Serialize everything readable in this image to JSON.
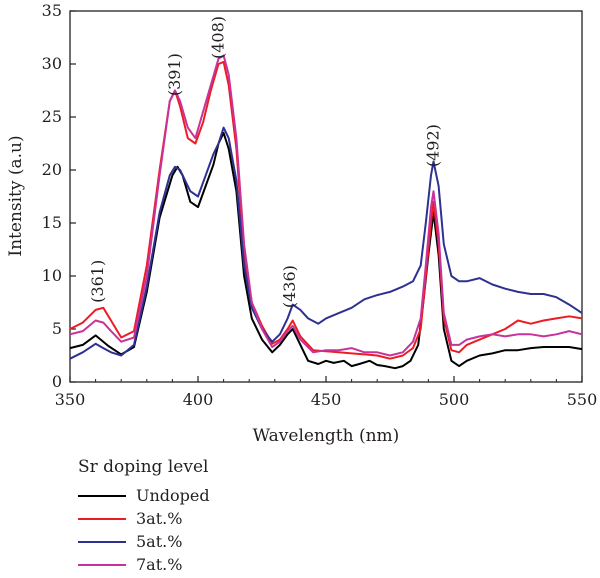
{
  "chart_data": {
    "type": "line",
    "xlabel": "Wavelength (nm)",
    "ylabel": "Intensity (a.u)",
    "xlim": [
      350,
      550
    ],
    "ylim": [
      0,
      35
    ],
    "xticks": [
      350,
      400,
      450,
      500,
      550
    ],
    "yticks": [
      0,
      5,
      10,
      15,
      20,
      25,
      30,
      35
    ],
    "grid": false,
    "legend": {
      "title": "Sr doping level",
      "placement": "below-left"
    },
    "annotations": [
      {
        "text": "(361)",
        "x": 361,
        "y": 9.5
      },
      {
        "text": "(391)",
        "x": 391,
        "y": 29.0
      },
      {
        "text": "(408)",
        "x": 408,
        "y": 32.5
      },
      {
        "text": "(436)",
        "x": 436,
        "y": 9.0
      },
      {
        "text": "(492)",
        "x": 492,
        "y": 22.3
      }
    ],
    "series": [
      {
        "name": "Undoped",
        "color": "#000000",
        "points": [
          [
            350,
            3.2
          ],
          [
            355,
            3.5
          ],
          [
            360,
            4.4
          ],
          [
            365,
            3.4
          ],
          [
            370,
            2.6
          ],
          [
            375,
            3.3
          ],
          [
            380,
            8.5
          ],
          [
            385,
            15.5
          ],
          [
            390,
            19.5
          ],
          [
            392,
            20.3
          ],
          [
            394,
            19.5
          ],
          [
            397,
            17.0
          ],
          [
            400,
            16.5
          ],
          [
            403,
            18.5
          ],
          [
            406,
            20.5
          ],
          [
            408,
            22.5
          ],
          [
            410,
            23.5
          ],
          [
            412,
            22.0
          ],
          [
            415,
            18.0
          ],
          [
            418,
            10.0
          ],
          [
            421,
            6.0
          ],
          [
            425,
            4.0
          ],
          [
            429,
            2.8
          ],
          [
            432,
            3.5
          ],
          [
            435,
            4.5
          ],
          [
            437,
            5.0
          ],
          [
            440,
            3.5
          ],
          [
            443,
            2.0
          ],
          [
            447,
            1.7
          ],
          [
            450,
            2.0
          ],
          [
            453,
            1.8
          ],
          [
            457,
            2.0
          ],
          [
            460,
            1.5
          ],
          [
            463,
            1.7
          ],
          [
            467,
            2.0
          ],
          [
            470,
            1.6
          ],
          [
            473,
            1.5
          ],
          [
            477,
            1.3
          ],
          [
            480,
            1.5
          ],
          [
            483,
            2.0
          ],
          [
            486,
            3.5
          ],
          [
            488,
            7.5
          ],
          [
            490,
            12.0
          ],
          [
            492,
            16.0
          ],
          [
            494,
            12.0
          ],
          [
            496,
            5.0
          ],
          [
            499,
            2.0
          ],
          [
            502,
            1.5
          ],
          [
            505,
            2.0
          ],
          [
            510,
            2.5
          ],
          [
            515,
            2.7
          ],
          [
            520,
            3.0
          ],
          [
            525,
            3.0
          ],
          [
            530,
            3.2
          ],
          [
            535,
            3.3
          ],
          [
            540,
            3.3
          ],
          [
            545,
            3.3
          ],
          [
            550,
            3.1
          ]
        ]
      },
      {
        "name": "3at.%",
        "color": "#ed1c24",
        "points": [
          [
            350,
            5.0
          ],
          [
            355,
            5.6
          ],
          [
            360,
            6.8
          ],
          [
            363,
            7.0
          ],
          [
            366,
            5.8
          ],
          [
            370,
            4.2
          ],
          [
            375,
            4.8
          ],
          [
            380,
            11.0
          ],
          [
            385,
            20.0
          ],
          [
            389,
            26.5
          ],
          [
            391,
            27.5
          ],
          [
            393,
            26.0
          ],
          [
            396,
            23.0
          ],
          [
            399,
            22.5
          ],
          [
            402,
            24.5
          ],
          [
            405,
            27.5
          ],
          [
            408,
            30.0
          ],
          [
            410,
            30.2
          ],
          [
            412,
            28.0
          ],
          [
            415,
            22.0
          ],
          [
            418,
            12.0
          ],
          [
            421,
            7.5
          ],
          [
            425,
            5.3
          ],
          [
            429,
            3.6
          ],
          [
            432,
            4.0
          ],
          [
            435,
            5.0
          ],
          [
            437,
            5.8
          ],
          [
            440,
            4.3
          ],
          [
            445,
            3.0
          ],
          [
            450,
            2.9
          ],
          [
            455,
            2.8
          ],
          [
            460,
            2.7
          ],
          [
            465,
            2.6
          ],
          [
            470,
            2.5
          ],
          [
            475,
            2.2
          ],
          [
            480,
            2.5
          ],
          [
            484,
            3.2
          ],
          [
            487,
            5.0
          ],
          [
            489,
            10.0
          ],
          [
            491,
            15.0
          ],
          [
            492,
            17.0
          ],
          [
            494,
            13.0
          ],
          [
            496,
            6.0
          ],
          [
            499,
            3.0
          ],
          [
            502,
            2.8
          ],
          [
            505,
            3.5
          ],
          [
            510,
            4.0
          ],
          [
            515,
            4.5
          ],
          [
            520,
            5.0
          ],
          [
            525,
            5.8
          ],
          [
            530,
            5.5
          ],
          [
            535,
            5.8
          ],
          [
            540,
            6.0
          ],
          [
            545,
            6.2
          ],
          [
            550,
            6.0
          ]
        ]
      },
      {
        "name": "5at.%",
        "color": "#2e3192",
        "points": [
          [
            350,
            2.2
          ],
          [
            355,
            2.8
          ],
          [
            360,
            3.6
          ],
          [
            363,
            3.2
          ],
          [
            366,
            2.8
          ],
          [
            370,
            2.5
          ],
          [
            375,
            3.5
          ],
          [
            380,
            9.0
          ],
          [
            385,
            16.0
          ],
          [
            389,
            19.5
          ],
          [
            391,
            20.3
          ],
          [
            393,
            20.0
          ],
          [
            397,
            18.0
          ],
          [
            400,
            17.5
          ],
          [
            403,
            19.5
          ],
          [
            406,
            21.5
          ],
          [
            408,
            22.5
          ],
          [
            410,
            24.0
          ],
          [
            412,
            23.0
          ],
          [
            415,
            19.0
          ],
          [
            418,
            11.0
          ],
          [
            421,
            7.0
          ],
          [
            425,
            5.0
          ],
          [
            429,
            3.8
          ],
          [
            432,
            4.5
          ],
          [
            435,
            6.0
          ],
          [
            437,
            7.3
          ],
          [
            440,
            6.8
          ],
          [
            443,
            6.0
          ],
          [
            447,
            5.5
          ],
          [
            450,
            6.0
          ],
          [
            455,
            6.5
          ],
          [
            460,
            7.0
          ],
          [
            465,
            7.8
          ],
          [
            470,
            8.2
          ],
          [
            475,
            8.5
          ],
          [
            480,
            9.0
          ],
          [
            484,
            9.5
          ],
          [
            487,
            11.0
          ],
          [
            489,
            15.0
          ],
          [
            491,
            19.5
          ],
          [
            492,
            20.8
          ],
          [
            494,
            18.5
          ],
          [
            496,
            13.0
          ],
          [
            499,
            10.0
          ],
          [
            502,
            9.5
          ],
          [
            505,
            9.5
          ],
          [
            510,
            9.8
          ],
          [
            515,
            9.2
          ],
          [
            520,
            8.8
          ],
          [
            525,
            8.5
          ],
          [
            530,
            8.3
          ],
          [
            535,
            8.3
          ],
          [
            540,
            8.0
          ],
          [
            545,
            7.3
          ],
          [
            550,
            6.5
          ]
        ]
      },
      {
        "name": "7at.%",
        "color": "#c8339a",
        "points": [
          [
            350,
            4.5
          ],
          [
            355,
            4.8
          ],
          [
            360,
            5.8
          ],
          [
            363,
            5.6
          ],
          [
            366,
            4.8
          ],
          [
            370,
            3.8
          ],
          [
            375,
            4.2
          ],
          [
            380,
            10.0
          ],
          [
            385,
            19.5
          ],
          [
            389,
            26.5
          ],
          [
            391,
            27.5
          ],
          [
            393,
            26.5
          ],
          [
            396,
            24.0
          ],
          [
            399,
            23.0
          ],
          [
            402,
            25.5
          ],
          [
            405,
            28.0
          ],
          [
            408,
            30.5
          ],
          [
            410,
            30.8
          ],
          [
            412,
            29.0
          ],
          [
            415,
            23.0
          ],
          [
            418,
            13.0
          ],
          [
            421,
            7.5
          ],
          [
            425,
            5.0
          ],
          [
            429,
            3.3
          ],
          [
            432,
            3.8
          ],
          [
            435,
            4.8
          ],
          [
            437,
            5.3
          ],
          [
            440,
            4.0
          ],
          [
            445,
            2.8
          ],
          [
            450,
            3.0
          ],
          [
            455,
            3.0
          ],
          [
            460,
            3.2
          ],
          [
            465,
            2.8
          ],
          [
            470,
            2.8
          ],
          [
            475,
            2.5
          ],
          [
            480,
            2.8
          ],
          [
            484,
            3.8
          ],
          [
            487,
            6.0
          ],
          [
            489,
            11.0
          ],
          [
            491,
            16.5
          ],
          [
            492,
            18.0
          ],
          [
            494,
            14.0
          ],
          [
            496,
            6.5
          ],
          [
            499,
            3.5
          ],
          [
            502,
            3.5
          ],
          [
            505,
            4.0
          ],
          [
            510,
            4.3
          ],
          [
            515,
            4.5
          ],
          [
            520,
            4.3
          ],
          [
            525,
            4.5
          ],
          [
            530,
            4.5
          ],
          [
            535,
            4.3
          ],
          [
            540,
            4.5
          ],
          [
            545,
            4.8
          ],
          [
            550,
            4.5
          ]
        ]
      }
    ]
  }
}
